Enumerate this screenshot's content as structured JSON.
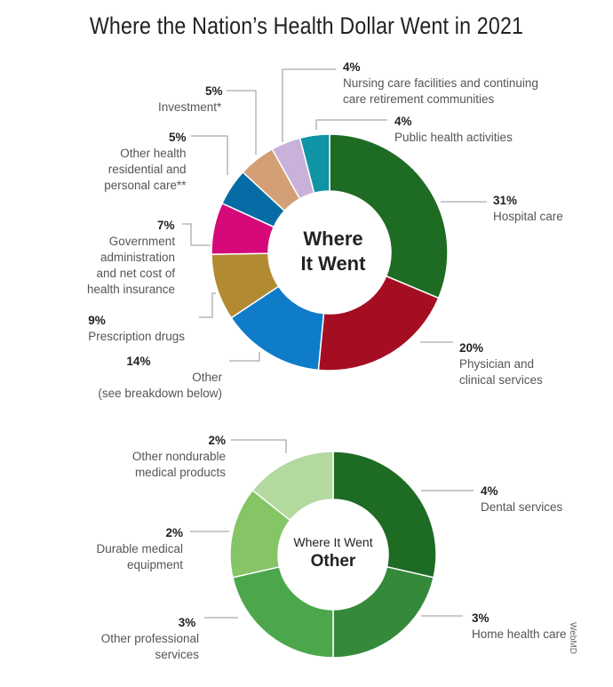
{
  "title": "Where the Nation’s Health Dollar Went in 2021",
  "credit": "WebMD",
  "chart_data": [
    {
      "type": "pie",
      "center_label": [
        "Where",
        "It Went"
      ],
      "slices": [
        {
          "pct_label": "31%",
          "label": "Hospital care",
          "value": 31,
          "color": "#1e6b24"
        },
        {
          "pct_label": "20%",
          "label": "Physician and\nclinical services",
          "value": 20,
          "color": "#a50d22"
        },
        {
          "pct_label": "14%",
          "label": "Other\n(see breakdown below)",
          "value": 14,
          "color": "#0e7cc9"
        },
        {
          "pct_label": "9%",
          "label": "Prescription drugs",
          "value": 9,
          "color": "#b18a32"
        },
        {
          "pct_label": "7%",
          "label": "Government\nadministration\nand net cost of\nhealth insurance",
          "value": 7,
          "color": "#d5097a"
        },
        {
          "pct_label": "5%",
          "label": "Other health\nresidential and\npersonal care**",
          "value": 5,
          "color": "#066ca5"
        },
        {
          "pct_label": "5%",
          "label": "Investment*",
          "value": 5,
          "color": "#d39f76"
        },
        {
          "pct_label": "4%",
          "label": "Nursing care facilities and continuing\ncare retirement communities",
          "value": 4,
          "color": "#c8b2da"
        },
        {
          "pct_label": "4%",
          "label": "Public health activities",
          "value": 4,
          "color": "#0f94a5"
        }
      ]
    },
    {
      "type": "pie",
      "center_label": [
        "Where It Went",
        "Other"
      ],
      "slices": [
        {
          "pct_label": "4%",
          "label": "Dental services",
          "value": 4,
          "color": "#1e6b24"
        },
        {
          "pct_label": "3%",
          "label": "Home health care",
          "value": 3,
          "color": "#34893a"
        },
        {
          "pct_label": "3%",
          "label": "Other professional\nservices",
          "value": 3,
          "color": "#4ca74c"
        },
        {
          "pct_label": "2%",
          "label": "Durable medical\nequipment",
          "value": 2,
          "color": "#85c566"
        },
        {
          "pct_label": "2%",
          "label": "Other nondurable\nmedical products",
          "value": 2,
          "color": "#b3d99f"
        }
      ]
    }
  ]
}
